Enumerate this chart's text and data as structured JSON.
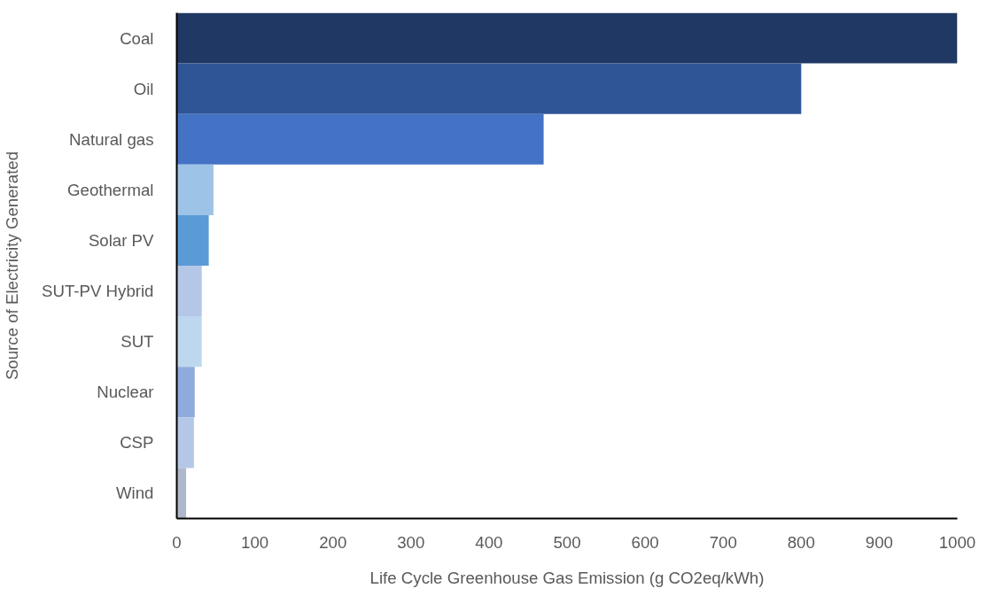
{
  "chart_data": {
    "type": "bar",
    "orientation": "horizontal",
    "xlabel": "Life Cycle Greenhouse Gas Emission (g CO2eq/kWh)",
    "ylabel": "Source of Electricity Generated",
    "categories": [
      "Coal",
      "Oil",
      "Natural gas",
      "Geothermal",
      "Solar PV",
      "SUT-PV Hybrid",
      "SUT",
      "Nuclear",
      "CSP",
      "Wind"
    ],
    "values": [
      1000,
      800,
      470,
      47,
      41,
      32,
      32,
      23,
      22,
      12
    ],
    "colors": [
      "#203864",
      "#2f5597",
      "#4472c4",
      "#9dc3e6",
      "#5b9bd5",
      "#b4c7e7",
      "#bdd7ee",
      "#8faadc",
      "#b4c7e7",
      "#adb9ca"
    ],
    "xlim": [
      0,
      1000
    ],
    "xticks": [
      0,
      100,
      200,
      300,
      400,
      500,
      600,
      700,
      800,
      900,
      1000
    ],
    "grid": false
  }
}
